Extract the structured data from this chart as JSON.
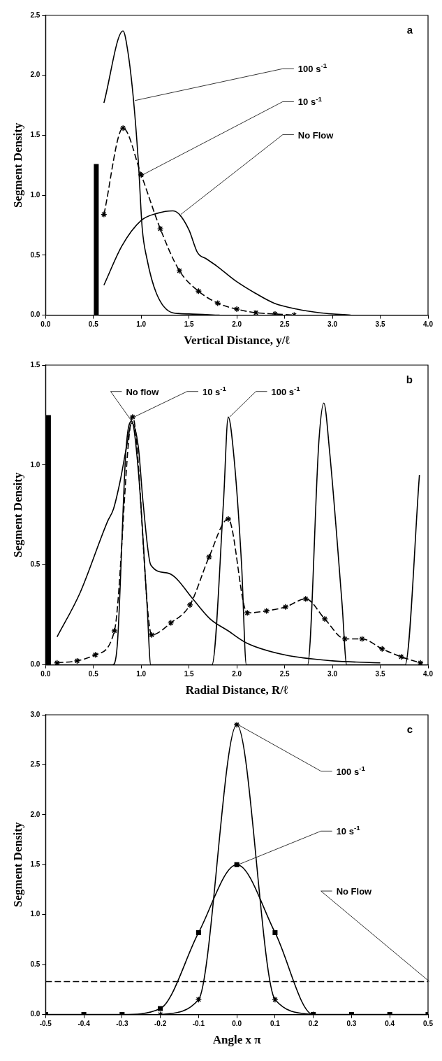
{
  "chart_data": [
    {
      "type": "line",
      "xlabel": "Vertical Distance, y/ℓ",
      "ylabel": "Segment Density",
      "annotations": [
        "a"
      ],
      "grid": false,
      "legend": false,
      "xlim": [
        0,
        4
      ],
      "xticks": [
        {
          "value": 0,
          "label": "0.0"
        },
        0.5,
        {
          "value": 1,
          "label": "1.0"
        },
        1.5,
        {
          "value": 2,
          "label": "2.0"
        },
        2.5,
        {
          "value": 3,
          "label": "3.0"
        },
        3.5,
        {
          "value": 4,
          "label": "4.0"
        }
      ],
      "ylim": [
        0,
        2.5
      ],
      "yticks": [
        {
          "value": 0,
          "label": "0.0"
        },
        0.5,
        {
          "value": 1,
          "label": "1.0"
        },
        1.5,
        {
          "value": 2,
          "label": "2.0"
        },
        2.5
      ],
      "series": [
        {
          "name": "100 s$^{-1}$",
          "color": "#000000",
          "line_style": "solid",
          "x": [
            0.61,
            0.81,
            0.86,
            0.92,
            0.97,
            1.01,
            1.06,
            1.16,
            1.33,
            1.5,
            1.82
          ],
          "values": [
            1.77,
            2.37,
            2.2,
            1.79,
            1.28,
            0.73,
            0.47,
            0.18,
            0.02,
            0.01,
            0
          ]
        },
        {
          "name": "10 s$^{-1}$",
          "color": "#000000",
          "line_style": "dashed",
          "marker": "cross",
          "x": [
            0.61,
            0.81,
            1.0,
            1.2,
            1.4,
            1.6,
            1.8,
            2.0,
            2.2,
            2.4,
            2.6
          ],
          "values": [
            0.84,
            1.56,
            1.17,
            0.72,
            0.37,
            0.2,
            0.1,
            0.05,
            0.02,
            0.01,
            0
          ]
        },
        {
          "name": "No Flow",
          "color": "#000000",
          "line_style": "solid",
          "x": [
            0.61,
            0.8,
            1.0,
            1.17,
            1.33,
            1.4,
            1.5,
            1.59,
            1.68,
            1.79,
            1.98,
            2.2,
            2.39,
            2.63,
            2.87,
            3.19
          ],
          "values": [
            0.25,
            0.58,
            0.79,
            0.85,
            0.87,
            0.84,
            0.71,
            0.52,
            0.47,
            0.41,
            0.29,
            0.18,
            0.1,
            0.05,
            0.02,
            0
          ]
        },
        {
          "color": "#000000",
          "line_style": "solid",
          "x": [
            0.53,
            0.53
          ],
          "values": [
            0,
            1.26
          ]
        }
      ]
    },
    {
      "type": "line",
      "xlabel": "Radial Distance, R/ℓ",
      "ylabel": "Segment Density",
      "annotations": [
        "b"
      ],
      "grid": false,
      "legend": false,
      "xlim": [
        0,
        4
      ],
      "xticks": [
        {
          "value": 0,
          "label": "0.0"
        },
        0.5,
        {
          "value": 1,
          "label": "1.0"
        },
        1.5,
        {
          "value": 2,
          "label": "2.0"
        },
        2.5,
        {
          "value": 3,
          "label": "3.0"
        },
        3.5,
        {
          "value": 4,
          "label": "4.0"
        }
      ],
      "ylim": [
        0,
        1.5
      ],
      "yticks": [
        {
          "value": 0,
          "label": "0.0"
        },
        0.5,
        {
          "value": 1,
          "label": "1.0"
        },
        1.5
      ],
      "series": [
        {
          "name": "No flow",
          "color": "#000000",
          "line_style": "solid",
          "x": [
            0.12,
            0.36,
            0.65,
            0.71,
            0.78,
            0.85,
            0.9,
            0.97,
            1.02,
            1.1,
            1.27,
            1.35,
            1.54,
            1.72,
            1.91,
            2.1,
            2.5,
            3.0,
            3.5
          ],
          "values": [
            0.14,
            0.36,
            0.72,
            0.78,
            0.92,
            1.1,
            1.21,
            1.09,
            0.81,
            0.5,
            0.46,
            0.44,
            0.33,
            0.23,
            0.17,
            0.11,
            0.05,
            0.02,
            0.01
          ]
        },
        {
          "name": "10 s$^{-1}$",
          "color": "#000000",
          "line_style": "dashed",
          "marker": "cross",
          "x": [
            0.12,
            0.33,
            0.52,
            0.72,
            0.91,
            1.11,
            1.31,
            1.51,
            1.71,
            1.91,
            2.11,
            2.31,
            2.51,
            2.72,
            2.92,
            3.13,
            3.31,
            3.52,
            3.72,
            3.92
          ],
          "values": [
            0.01,
            0.02,
            0.05,
            0.17,
            1.24,
            0.15,
            0.21,
            0.3,
            0.54,
            0.73,
            0.26,
            0.27,
            0.29,
            0.33,
            0.23,
            0.13,
            0.13,
            0.08,
            0.04,
            0.01
          ]
        },
        {
          "name": "100 s$^{-1}$",
          "color": "#000000",
          "line_style": "solid",
          "x": [
            0.12,
            0.7,
            0.75,
            0.84,
            0.9,
            0.97,
            1.06,
            1.1,
            1.74,
            1.86,
            1.91,
            1.97,
            2.05,
            2.1,
            2.74,
            2.86,
            2.91,
            2.97,
            3.1,
            3.15,
            3.76,
            3.91
          ],
          "values": [
            0,
            0,
            0.1,
            1.07,
            1.22,
            0.97,
            0.31,
            0,
            0,
            0.81,
            1.24,
            1.04,
            0.5,
            0,
            0,
            1.13,
            1.31,
            1.07,
            0.31,
            0,
            0,
            0.95
          ]
        },
        {
          "color": "#000000",
          "line_style": "solid",
          "x": [
            0.03,
            0.03
          ],
          "values": [
            0,
            1.25
          ]
        }
      ]
    },
    {
      "type": "line",
      "xlabel": "Angle x π",
      "ylabel": "Segment Density",
      "annotations": [
        "c"
      ],
      "grid": false,
      "legend": false,
      "xlim": [
        -0.5,
        0.5
      ],
      "xticks": [
        -0.5,
        -0.4,
        -0.3,
        -0.2,
        -0.1,
        {
          "value": 0,
          "label": "0.0"
        },
        0.1,
        0.2,
        0.3,
        0.4,
        0.5
      ],
      "ylim": [
        0,
        3
      ],
      "yticks": [
        {
          "value": 0,
          "label": "0.0"
        },
        0.5,
        {
          "value": 1,
          "label": "1.0"
        },
        1.5,
        {
          "value": 2,
          "label": "2.0"
        },
        2.5,
        {
          "value": 3,
          "label": "3.0"
        }
      ],
      "series": [
        {
          "name": "100 s$^{-1}$",
          "color": "#000000",
          "line_style": "solid",
          "marker": "cross",
          "x": [
            -0.2,
            -0.1,
            0,
            0.1,
            0.2
          ],
          "values": [
            0,
            0.15,
            2.9,
            0.15,
            0
          ]
        },
        {
          "name": "10 s$^{-1}$",
          "color": "#000000",
          "line_style": "solid",
          "marker": "square",
          "x": [
            -0.5,
            -0.4,
            -0.3,
            -0.2,
            -0.1,
            0,
            0.1,
            0.2,
            0.3,
            0.4,
            0.5
          ],
          "values": [
            0,
            0,
            0,
            0.06,
            0.82,
            1.5,
            0.82,
            0,
            0,
            0,
            0
          ]
        },
        {
          "name": "No Flow",
          "color": "#000000",
          "line_style": "dashed",
          "x": [
            -0.5,
            0.5
          ],
          "values": [
            0.33,
            0.33
          ]
        }
      ]
    }
  ]
}
